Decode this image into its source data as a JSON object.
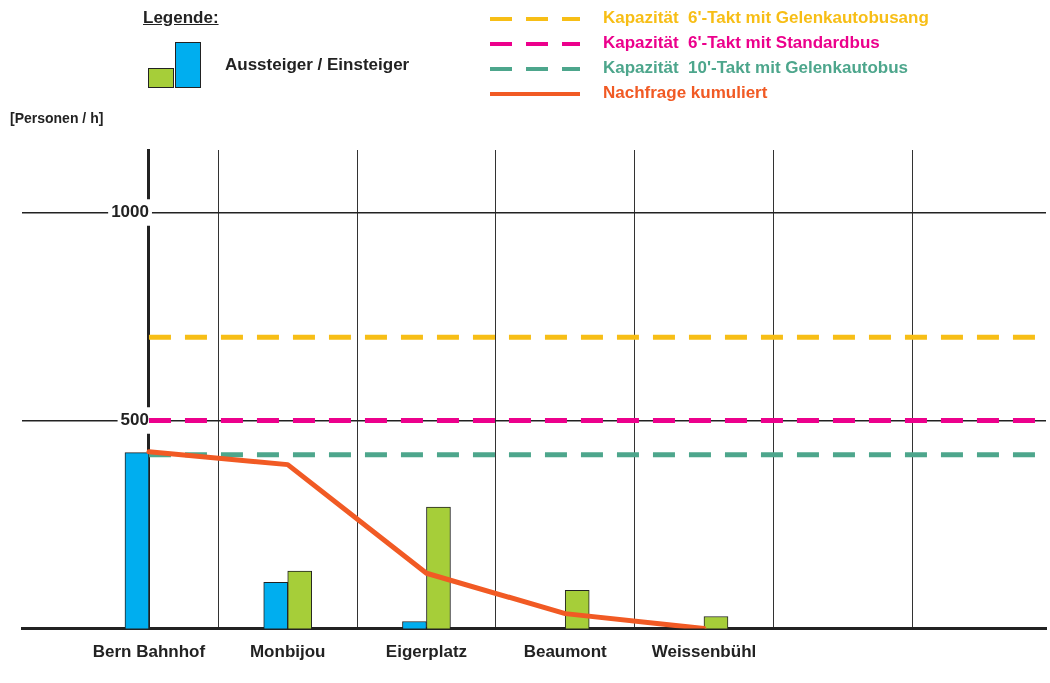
{
  "chart_data": {
    "type": "bar",
    "ylabel": "[Personen / h]",
    "annotations": [
      "Aussteiger / Einsteiger"
    ],
    "legend_title": "Legende:",
    "legend": "top",
    "categories": [
      "Bern Bahnhof",
      "Monbijou",
      "Eigerplatz",
      "Beaumont",
      "Weissenbühl",
      null
    ],
    "series": [
      {
        "color": "#00aeef",
        "values": [
          423,
          111,
          17,
          null,
          0,
          null
        ]
      },
      {
        "color": "#a6ce39",
        "values": [
          0,
          138,
          292,
          92,
          29,
          null
        ]
      },
      {
        "name": "Nachfrage kumuliert",
        "type": "line",
        "color": "#f15a24",
        "values": [
          425,
          394,
          133,
          36,
          0,
          null
        ]
      }
    ],
    "ylim": [
      0,
      1150
    ],
    "yticks": [
      500,
      1000
    ],
    "grid": true,
    "line_style": "solid",
    "marker": "none",
    "ref_lines": [
      {
        "axis": "y",
        "value": 700,
        "label": "Kapazität  6'-Takt mit Gelenkautobusang",
        "color": "#f7be16",
        "line_style": "dashed"
      },
      {
        "axis": "y",
        "value": 500,
        "label": "Kapazität  6'-Takt mit Standardbus",
        "color": "#ec008c",
        "line_style": "dashed"
      },
      {
        "axis": "y",
        "value": 418,
        "label": "Kapazität  10'-Takt mit Gelenkautobus",
        "color": "#4da68c",
        "line_style": "dashed"
      }
    ]
  }
}
